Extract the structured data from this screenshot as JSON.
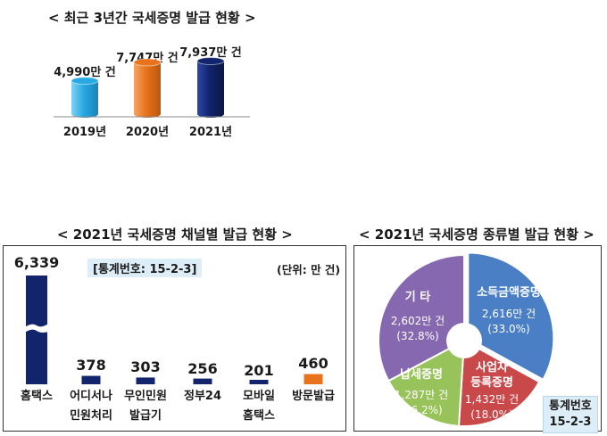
{
  "top": {
    "title": "< 최근 3년간 국세증명 발급 현황 >",
    "items": [
      {
        "year": "2019년",
        "label": "4,990만 건",
        "value": 4990,
        "color": "#29a9e4"
      },
      {
        "year": "2020년",
        "label": "7,747만 건",
        "value": 7747,
        "color": "#e8731c"
      },
      {
        "year": "2021년",
        "label": "7,937만 건",
        "value": 7937,
        "color": "#12246b"
      }
    ]
  },
  "channel": {
    "title": "< 2021년 국세증명 채널별 발급 현황 >",
    "stat_no": "[통계번호: 15-2-3]",
    "unit": "(단위: 만 건)",
    "bars": [
      {
        "line1": "홈택스",
        "line2": "",
        "label": "6,339",
        "value": 6339,
        "color": "#12246b",
        "broken": true
      },
      {
        "line1": "어디서나",
        "line2": "민원처리",
        "label": "378",
        "value": 378,
        "color": "#12246b"
      },
      {
        "line1": "무인민원",
        "line2": "발급기",
        "label": "303",
        "value": 303,
        "color": "#12246b"
      },
      {
        "line1": "정부24",
        "line2": "",
        "label": "256",
        "value": 256,
        "color": "#12246b"
      },
      {
        "line1": "모바일",
        "line2": "홈택스",
        "label": "201",
        "value": 201,
        "color": "#12246b"
      },
      {
        "line1": "방문발급",
        "line2": "",
        "label": "460",
        "value": 460,
        "color": "#e8731c"
      }
    ]
  },
  "kind": {
    "title": "< 2021년 국세증명 종류별 발급 현황 >",
    "stat_line1": "통계번호",
    "stat_line2": "15-2-3",
    "slices": [
      {
        "name": "소득금액증명",
        "amount": "2,616만 건",
        "pct_label": "(33.0%)",
        "value": 33.0,
        "color": "#4a7fc6"
      },
      {
        "name": "사업자 등록증명",
        "amount": "1,432만 건",
        "pct_label": "(18.0%)",
        "value": 18.0,
        "color": "#c9484a"
      },
      {
        "name": "납세증명",
        "amount": "1,287만 건",
        "pct_label": "(16.2%)",
        "value": 16.2,
        "color": "#98c25a"
      },
      {
        "name": "기 타",
        "amount": "2,602만 건",
        "pct_label": "(32.8%)",
        "value": 32.8,
        "color": "#8568b0"
      }
    ]
  },
  "chart_data": [
    {
      "type": "bar",
      "title": "최근 3년간 국세증명 발급 현황",
      "categories": [
        "2019년",
        "2020년",
        "2021년"
      ],
      "values": [
        4990,
        7747,
        7937
      ],
      "unit": "만 건"
    },
    {
      "type": "bar",
      "title": "2021년 국세증명 채널별 발급 현황",
      "categories": [
        "홈택스",
        "어디서나 민원처리",
        "무인민원 발급기",
        "정부24",
        "모바일 홈택스",
        "방문발급"
      ],
      "values": [
        6339,
        378,
        303,
        256,
        201,
        460
      ],
      "unit": "만 건"
    },
    {
      "type": "pie",
      "title": "2021년 국세증명 종류별 발급 현황",
      "categories": [
        "소득금액증명",
        "사업자 등록증명",
        "납세증명",
        "기 타"
      ],
      "values": [
        2616,
        1432,
        1287,
        2602
      ],
      "percent": [
        33.0,
        18.0,
        16.2,
        32.8
      ],
      "unit": "만 건"
    }
  ]
}
